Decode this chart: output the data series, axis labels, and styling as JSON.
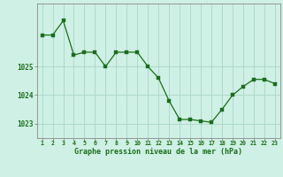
{
  "x": [
    1,
    2,
    3,
    4,
    5,
    6,
    7,
    8,
    9,
    10,
    11,
    12,
    13,
    14,
    15,
    16,
    17,
    18,
    19,
    20,
    21,
    22,
    23
  ],
  "y": [
    1026.1,
    1026.1,
    1026.6,
    1025.4,
    1025.5,
    1025.5,
    1025.0,
    1025.5,
    1025.5,
    1025.5,
    1025.0,
    1024.6,
    1023.8,
    1023.15,
    1023.15,
    1023.1,
    1023.05,
    1023.5,
    1024.0,
    1024.3,
    1024.55,
    1024.55,
    1024.4
  ],
  "line_color": "#1a6e1a",
  "marker_color": "#1a6e1a",
  "bg_color": "#cff0e4",
  "grid_color": "#a8d8c8",
  "xlabel": "Graphe pression niveau de la mer (hPa)",
  "xlabel_color": "#1a6e1a",
  "ylabel_ticks": [
    1023,
    1024,
    1025
  ],
  "ylim": [
    1022.5,
    1027.2
  ],
  "xlim": [
    0.5,
    23.5
  ],
  "tick_color": "#1a6e1a",
  "spine_color": "#888888"
}
